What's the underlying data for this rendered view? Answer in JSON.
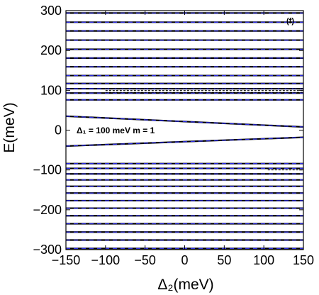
{
  "chart_data": {
    "type": "line",
    "xlabel": "Δ₂(meV)",
    "ylabel": "E(meV)",
    "xlim": [
      -150,
      150
    ],
    "ylim": [
      -300,
      300
    ],
    "xticks": [
      -150,
      -100,
      -50,
      0,
      50,
      100,
      150
    ],
    "yticks": [
      -300,
      -200,
      -100,
      0,
      100,
      200,
      300
    ],
    "xtick_labels": [
      "−150",
      "−100",
      "−50",
      "0",
      "50",
      "100",
      "150"
    ],
    "ytick_labels": [
      "−300",
      "−200",
      "−100",
      "0",
      "100",
      "200",
      "300"
    ],
    "panel_label": "(f)",
    "annotation": "Δ₁ = 100 meV  m = 1",
    "line_color": "#000000",
    "dashed_color": "#2b2be0",
    "x": [
      -150,
      150
    ],
    "levels": [
      {
        "y": [
          -297,
          -297
        ]
      },
      {
        "y": [
          -276,
          -276
        ]
      },
      {
        "y": [
          -256,
          -256
        ]
      },
      {
        "y": [
          -235,
          -235
        ]
      },
      {
        "y": [
          -215,
          -215
        ]
      },
      {
        "y": [
          -196,
          -196
        ]
      },
      {
        "y": [
          -177,
          -177
        ]
      },
      {
        "y": [
          -158,
          -158
        ]
      },
      {
        "y": [
          -141,
          -141
        ]
      },
      {
        "y": [
          -125,
          -125
        ]
      },
      {
        "y": [
          -110,
          -110
        ]
      },
      {
        "y": [
          -96,
          -96
        ]
      },
      {
        "y": [
          -84,
          -84
        ]
      },
      {
        "y": [
          -40,
          -18
        ]
      },
      {
        "y": [
          35,
          8
        ]
      },
      {
        "y": [
          76,
          76
        ]
      },
      {
        "y": [
          93,
          93
        ]
      },
      {
        "y": [
          104,
          104
        ]
      },
      {
        "y": [
          117,
          117
        ]
      },
      {
        "y": [
          137,
          137
        ]
      },
      {
        "y": [
          159,
          159
        ]
      },
      {
        "y": [
          181,
          181
        ]
      },
      {
        "y": [
          203,
          203
        ]
      },
      {
        "y": [
          226,
          226
        ]
      },
      {
        "y": [
          249,
          249
        ]
      },
      {
        "y": [
          271,
          271
        ]
      },
      {
        "y": [
          294,
          294
        ]
      }
    ],
    "dashed_segments": [
      {
        "x": [
          -100,
          150
        ],
        "y": [
          95,
          95
        ]
      },
      {
        "x": [
          -100,
          150
        ],
        "y": [
          100,
          100
        ]
      },
      {
        "x": [
          -100,
          150
        ],
        "y": [
          105,
          105
        ]
      },
      {
        "x": [
          105,
          150
        ],
        "y": [
          -100,
          -100
        ]
      }
    ]
  }
}
